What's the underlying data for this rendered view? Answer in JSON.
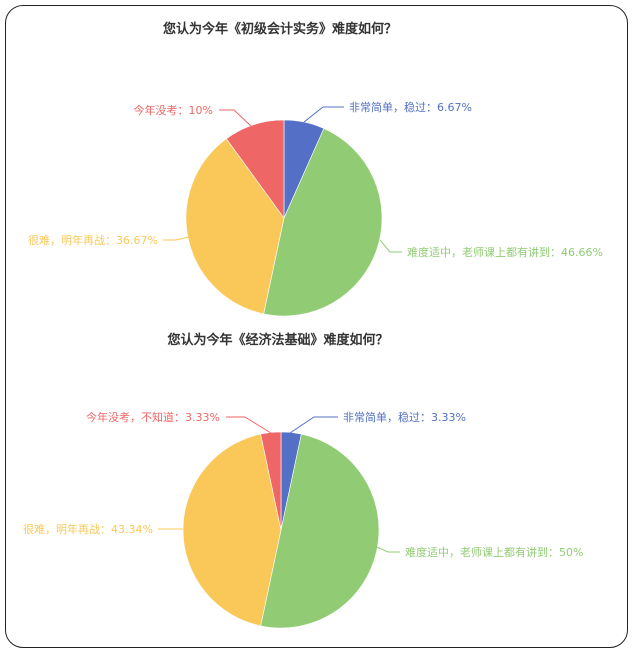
{
  "colors": {
    "blue": "#5470c6",
    "green": "#91cc75",
    "yellow": "#fac858",
    "red": "#ee6666"
  },
  "chart_data": [
    {
      "type": "pie",
      "title": "您认为今年《初级会计实务》难度如何？",
      "slices": [
        {
          "label": "非常简单，稳过：6.67%",
          "value": 6.67,
          "color": "#5470c6"
        },
        {
          "label": "难度适中，老师课上都有讲到：46.66%",
          "value": 46.66,
          "color": "#91cc75"
        },
        {
          "label": "很难，明年再战：36.67%",
          "value": 36.67,
          "color": "#fac858"
        },
        {
          "label": "今年没考：10%",
          "value": 10,
          "color": "#ee6666"
        }
      ]
    },
    {
      "type": "pie",
      "title": "您认为今年《经济法基础》难度如何？",
      "slices": [
        {
          "label": "非常简单，稳过：3.33%",
          "value": 3.33,
          "color": "#5470c6"
        },
        {
          "label": "难度适中，老师课上都有讲到：50%",
          "value": 50,
          "color": "#91cc75"
        },
        {
          "label": "很难，明年再战：43.34%",
          "value": 43.34,
          "color": "#fac858"
        },
        {
          "label": "今年没考，不知道：3.33%",
          "value": 3.33,
          "color": "#ee6666"
        }
      ]
    }
  ]
}
